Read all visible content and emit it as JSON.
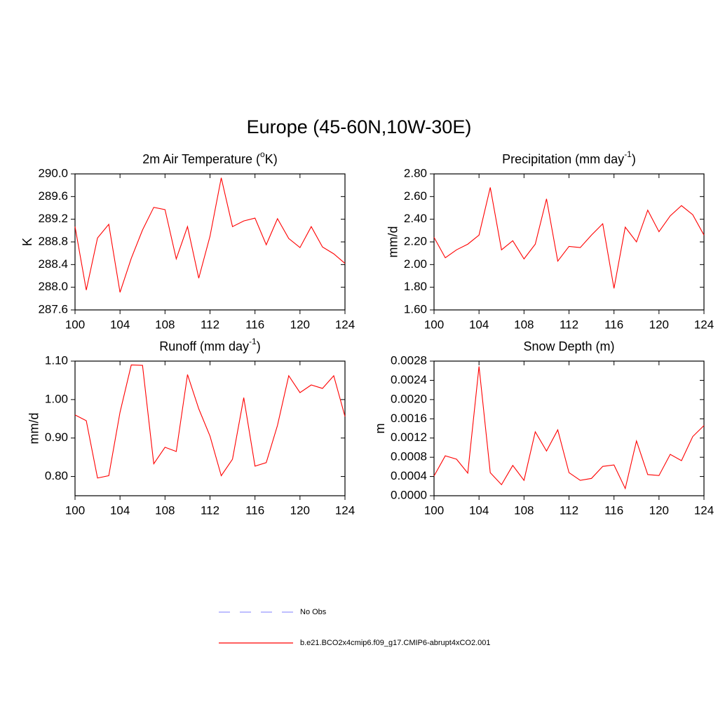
{
  "title": "Europe (45-60N,10W-30E)",
  "legend": [
    {
      "name": "No Obs",
      "color": "#9999ff",
      "dash": true
    },
    {
      "name": "b.e21.BCO2x4cmip6.f09_g17.CMIP6-abrupt4xCO2.001",
      "color": "#ff0000",
      "dash": false
    }
  ],
  "chart_data": [
    {
      "type": "line",
      "title_parts": [
        "2m Air Temperature (",
        "o",
        "K)"
      ],
      "ylabel": "K",
      "color": "#ff0000",
      "x": [
        100,
        101,
        102,
        103,
        104,
        105,
        106,
        107,
        108,
        109,
        110,
        111,
        112,
        113,
        114,
        115,
        116,
        117,
        118,
        119,
        120,
        121,
        122,
        123,
        124
      ],
      "values": [
        289.07,
        287.95,
        288.87,
        289.11,
        287.91,
        288.51,
        289.01,
        289.41,
        289.37,
        288.5,
        289.07,
        288.16,
        288.9,
        289.93,
        289.07,
        289.17,
        289.22,
        288.75,
        289.21,
        288.86,
        288.7,
        289.07,
        288.71,
        288.59,
        288.42
      ],
      "xlim": [
        100,
        124
      ],
      "xticks": [
        100,
        104,
        108,
        112,
        116,
        120,
        124
      ],
      "ylim": [
        287.6,
        290.0
      ],
      "yticks": [
        287.6,
        {
          "value": 288.0,
          "label": "288.0"
        },
        288.4,
        288.8,
        289.2,
        289.6,
        {
          "value": 290.0,
          "label": "290.0"
        }
      ]
    },
    {
      "type": "line",
      "title_parts": [
        "Precipitation (mm day",
        "-1",
        ")"
      ],
      "ylabel": "mm/d",
      "color": "#ff0000",
      "x": [
        100,
        101,
        102,
        103,
        104,
        105,
        106,
        107,
        108,
        109,
        110,
        111,
        112,
        113,
        114,
        115,
        116,
        117,
        118,
        119,
        120,
        121,
        122,
        123,
        124
      ],
      "values": [
        2.24,
        2.06,
        2.13,
        2.18,
        2.26,
        2.68,
        2.13,
        2.21,
        2.05,
        2.18,
        2.58,
        2.03,
        2.16,
        2.15,
        2.26,
        2.36,
        1.79,
        2.33,
        2.2,
        2.48,
        2.29,
        2.43,
        2.52,
        2.44,
        2.26
      ],
      "xlim": [
        100,
        124
      ],
      "xticks": [
        100,
        104,
        108,
        112,
        116,
        120,
        124
      ],
      "ylim": [
        1.6,
        2.8
      ],
      "yticks": [
        {
          "value": 1.6,
          "label": "1.60"
        },
        {
          "value": 1.8,
          "label": "1.80"
        },
        {
          "value": 2.0,
          "label": "2.00"
        },
        {
          "value": 2.2,
          "label": "2.20"
        },
        {
          "value": 2.4,
          "label": "2.40"
        },
        {
          "value": 2.6,
          "label": "2.60"
        },
        {
          "value": 2.8,
          "label": "2.80"
        }
      ]
    },
    {
      "type": "line",
      "title_parts": [
        "Runoff (mm day",
        "-1",
        ")"
      ],
      "ylabel": "mm/d",
      "color": "#ff0000",
      "x": [
        100,
        101,
        102,
        103,
        104,
        105,
        106,
        107,
        108,
        109,
        110,
        111,
        112,
        113,
        114,
        115,
        116,
        117,
        118,
        119,
        120,
        121,
        122,
        123,
        124
      ],
      "values": [
        0.96,
        0.945,
        0.796,
        0.802,
        0.967,
        1.09,
        1.089,
        0.833,
        0.876,
        0.865,
        1.065,
        0.976,
        0.905,
        0.802,
        0.845,
        1.005,
        0.827,
        0.836,
        0.933,
        1.062,
        1.018,
        1.038,
        1.029,
        1.062,
        0.956
      ],
      "xlim": [
        100,
        124
      ],
      "xticks": [
        100,
        104,
        108,
        112,
        116,
        120,
        124
      ],
      "ylim": [
        0.75,
        1.1
      ],
      "yticks": [
        {
          "value": 0.8,
          "label": "0.80"
        },
        {
          "value": 0.9,
          "label": "0.90"
        },
        {
          "value": 1.0,
          "label": "1.00"
        },
        {
          "value": 1.1,
          "label": "1.10"
        }
      ]
    },
    {
      "type": "line",
      "title_parts": [
        "Snow Depth (m)"
      ],
      "ylabel": "m",
      "color": "#ff0000",
      "x": [
        100,
        101,
        102,
        103,
        104,
        105,
        106,
        107,
        108,
        109,
        110,
        111,
        112,
        113,
        114,
        115,
        116,
        117,
        118,
        119,
        120,
        121,
        122,
        123,
        124
      ],
      "values": [
        0.00041,
        0.00083,
        0.00076,
        0.00047,
        0.00269,
        0.00048,
        0.00023,
        0.00063,
        0.00032,
        0.00133,
        0.00093,
        0.00137,
        0.00048,
        0.00032,
        0.00036,
        0.00061,
        0.00064,
        0.00015,
        0.00114,
        0.00044,
        0.00042,
        0.00086,
        0.00073,
        0.00123,
        0.00146
      ],
      "xlim": [
        100,
        124
      ],
      "xticks": [
        100,
        104,
        108,
        112,
        116,
        120,
        124
      ],
      "ylim": [
        0,
        0.0028
      ],
      "yticks": [
        {
          "value": 0,
          "label": "0.0000"
        },
        {
          "value": 0.0004,
          "label": "0.0004"
        },
        {
          "value": 0.0008,
          "label": "0.0008"
        },
        {
          "value": 0.0012,
          "label": "0.0012"
        },
        {
          "value": 0.0016,
          "label": "0.0016"
        },
        {
          "value": 0.002,
          "label": "0.0020"
        },
        {
          "value": 0.0024,
          "label": "0.0024"
        },
        {
          "value": 0.0028,
          "label": "0.0028"
        }
      ]
    }
  ]
}
